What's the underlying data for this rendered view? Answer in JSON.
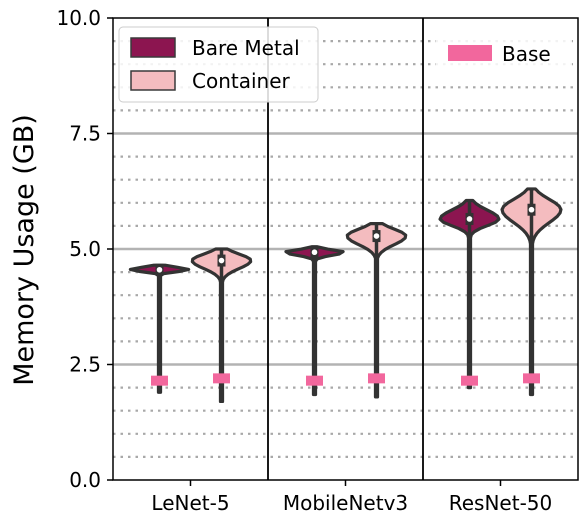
{
  "chart_data": {
    "type": "violin",
    "title": "",
    "xlabel": "",
    "ylabel": "Memory Usage (GB)",
    "ylim": [
      0,
      10
    ],
    "yticks": [
      0.0,
      2.5,
      5.0,
      7.5,
      10.0
    ],
    "ytick_labels": [
      "0.0",
      "2.5",
      "5.0",
      "7.5",
      "10.0"
    ],
    "minor_grid_step": 0.5,
    "grid": true,
    "categories": [
      "LeNet-5",
      "MobileNetv3",
      "ResNet-50"
    ],
    "series": [
      {
        "name": "Bare Metal",
        "color": "#8c1550",
        "values": [
          {
            "category": "LeNet-5",
            "median": 4.55,
            "min": 1.9,
            "max": 4.65,
            "body_low": 4.45,
            "body_high": 4.65
          },
          {
            "category": "MobileNetv3",
            "median": 4.93,
            "min": 1.85,
            "max": 5.05,
            "body_low": 4.8,
            "body_high": 5.05
          },
          {
            "category": "ResNet-50",
            "median": 5.65,
            "min": 2.0,
            "max": 6.05,
            "body_low": 5.35,
            "body_high": 6.05
          }
        ]
      },
      {
        "name": "Container",
        "color": "#f4bcbf",
        "values": [
          {
            "category": "LeNet-5",
            "median": 4.75,
            "min": 1.7,
            "max": 5.0,
            "body_low": 4.35,
            "body_high": 5.0
          },
          {
            "category": "MobileNetv3",
            "median": 5.28,
            "min": 1.8,
            "max": 5.55,
            "body_low": 4.85,
            "body_high": 5.55
          },
          {
            "category": "ResNet-50",
            "median": 5.85,
            "min": 1.85,
            "max": 6.3,
            "body_low": 5.25,
            "body_high": 6.3
          }
        ]
      }
    ],
    "base": {
      "name": "Base",
      "color": "#f2679d",
      "values": [
        {
          "category": "LeNet-5",
          "bare_metal": 2.15,
          "container": 2.2
        },
        {
          "category": "MobileNetv3",
          "bare_metal": 2.15,
          "container": 2.2
        },
        {
          "category": "ResNet-50",
          "bare_metal": 2.15,
          "container": 2.2
        }
      ]
    },
    "legend": {
      "position": "top-left",
      "entries": [
        "Bare Metal",
        "Container"
      ],
      "secondary_position": "top-right",
      "secondary_entries": [
        "Base"
      ]
    }
  }
}
